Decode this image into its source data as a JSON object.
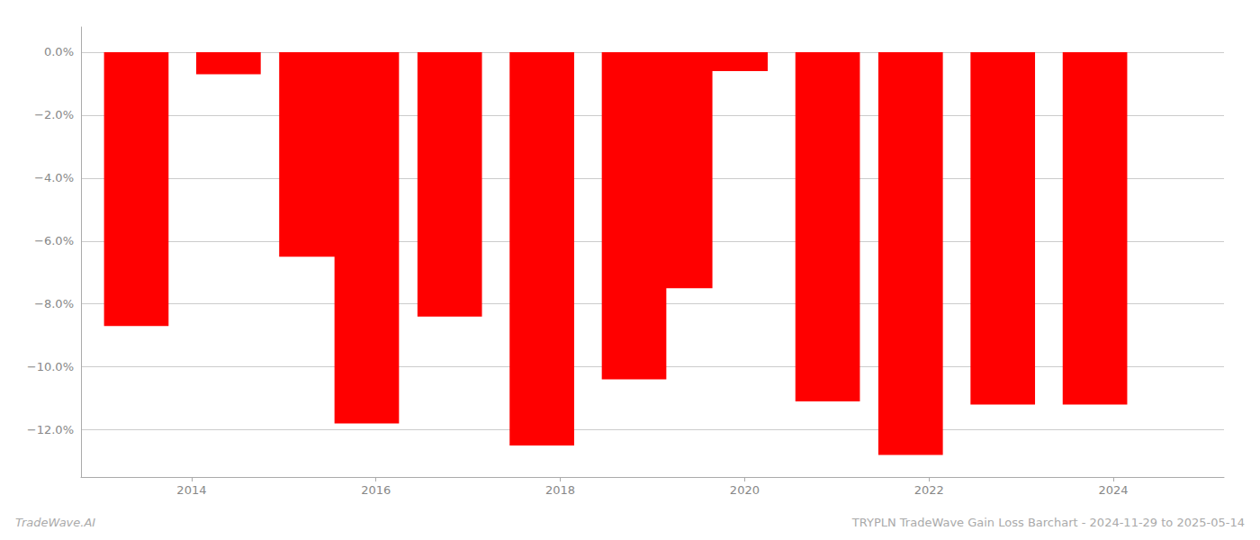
{
  "chart_data": {
    "type": "bar",
    "title": "TRYPLN TradeWave Gain Loss Barchart - 2024-11-29 to 2025-05-14",
    "annotations": [
      "TradeWave.AI"
    ],
    "x": [
      2013.4,
      2014.4,
      2015.3,
      2015.9,
      2016.8,
      2017.8,
      2018.8,
      2019.3,
      2019.9,
      2020.9,
      2021.8,
      2022.8,
      2023.8
    ],
    "values": [
      -8.7,
      -0.7,
      -6.5,
      -11.8,
      -8.4,
      -12.5,
      -10.4,
      -7.5,
      -0.6,
      -11.1,
      -12.8,
      -11.2,
      -11.2
    ],
    "color": "#ff0000",
    "xlim": [
      2012.8,
      2025.2
    ],
    "xticks": [
      2014,
      2016,
      2018,
      2020,
      2022,
      2024
    ],
    "ylim": [
      -13.5,
      0.8
    ],
    "yticks": [
      {
        "value": 0.0,
        "label": "0.0%"
      },
      {
        "value": -2.0,
        "label": "−2.0%"
      },
      {
        "value": -4.0,
        "label": "−4.0%"
      },
      {
        "value": -6.0,
        "label": "−6.0%"
      },
      {
        "value": -8.0,
        "label": "−8.0%"
      },
      {
        "value": -10.0,
        "label": "−10.0%"
      },
      {
        "value": -12.0,
        "label": "−12.0%"
      }
    ],
    "grid": true
  }
}
